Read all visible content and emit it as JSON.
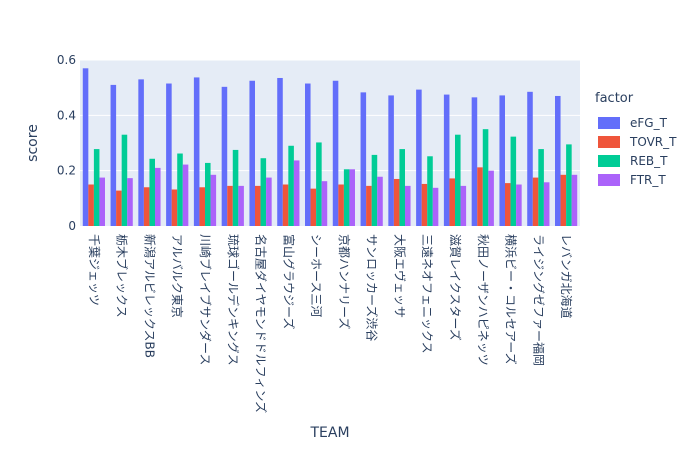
{
  "chart_data": {
    "type": "bar",
    "xlabel": "TEAM",
    "ylabel": "score",
    "ylim": [
      0,
      0.6
    ],
    "yticks": [
      "0",
      "0.2",
      "0.4",
      "0.6"
    ],
    "grid": true,
    "legend_title": "factor",
    "legend_position": "right",
    "categories": [
      "千葉ジェッツ",
      "栃木ブレックス",
      "新潟アルビレックスBB",
      "アルバルク東京",
      "川崎ブレイブサンダース",
      "琉球ゴールデンキングス",
      "名古屋ダイヤモンドドルフィンズ",
      "富山グラウジーズ",
      "シーホース三河",
      "京都ハンナリーズ",
      "サンロッカーズ渋谷",
      "大阪エヴェッサ",
      "三遠ネオフェニックス",
      "滋賀レイクスターズ",
      "秋田ノーザンハピネッツ",
      "横浜ビー・コルセアーズ",
      "ライジングゼファー福岡",
      "レバンガ北海道"
    ],
    "series": [
      {
        "name": "eFG_T",
        "color": "#636efa",
        "values": [
          0.57,
          0.51,
          0.53,
          0.515,
          0.537,
          0.503,
          0.525,
          0.535,
          0.515,
          0.525,
          0.483,
          0.472,
          0.493,
          0.475,
          0.465,
          0.472,
          0.485,
          0.47
        ]
      },
      {
        "name": "TOVR_T",
        "color": "#ef553b",
        "values": [
          0.15,
          0.128,
          0.14,
          0.132,
          0.14,
          0.145,
          0.145,
          0.15,
          0.135,
          0.15,
          0.145,
          0.17,
          0.152,
          0.172,
          0.212,
          0.155,
          0.175,
          0.185
        ]
      },
      {
        "name": "REB_T",
        "color": "#00cc96",
        "values": [
          0.278,
          0.33,
          0.243,
          0.262,
          0.228,
          0.275,
          0.245,
          0.29,
          0.302,
          0.205,
          0.257,
          0.278,
          0.252,
          0.33,
          0.35,
          0.323,
          0.278,
          0.295
        ]
      },
      {
        "name": "FTR_T",
        "color": "#ab63fa",
        "values": [
          0.175,
          0.173,
          0.21,
          0.222,
          0.185,
          0.145,
          0.175,
          0.237,
          0.162,
          0.205,
          0.178,
          0.145,
          0.138,
          0.145,
          0.2,
          0.15,
          0.158,
          0.185
        ]
      }
    ]
  }
}
